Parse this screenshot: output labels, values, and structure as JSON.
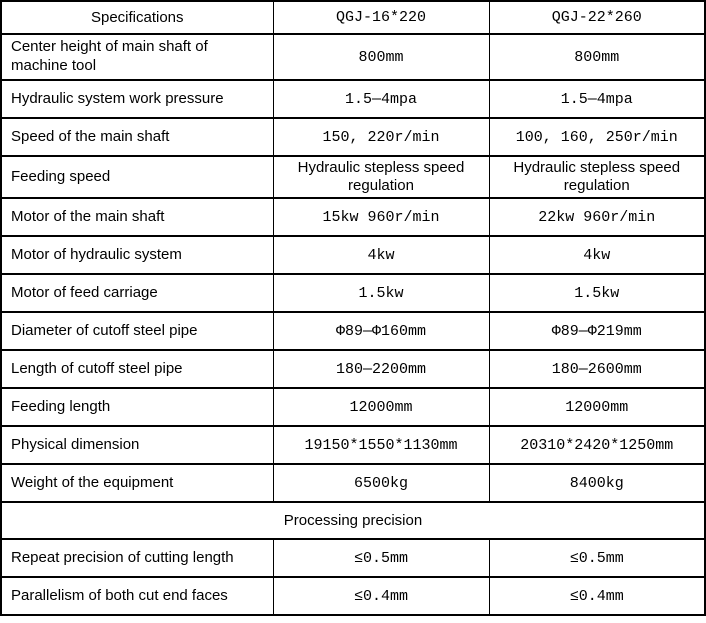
{
  "colors": {
    "background": "#ffffff",
    "border": "#000000",
    "text": "#000000"
  },
  "table": {
    "header": {
      "specifications": "Specifications",
      "model1": "QGJ-16*220",
      "model2": "QGJ-22*260"
    },
    "rows": [
      {
        "label": "Center height of main shaft of machine tool",
        "col1": "800mm",
        "col2": "800mm"
      },
      {
        "label": "Hydraulic system work pressure",
        "col1": "1.5—4mpa",
        "col2": "1.5—4mpa"
      },
      {
        "label": "Speed of the main shaft",
        "col1": "150、220r/min",
        "col2": "100、160、250r/min"
      },
      {
        "label": "Feeding speed",
        "col1": "Hydraulic stepless speed regulation",
        "col2": "Hydraulic stepless speed regulation"
      },
      {
        "label": "Motor of the main shaft",
        "col1": "15kw 960r/min",
        "col2": "22kw 960r/min"
      },
      {
        "label": "Motor of hydraulic system",
        "col1": "4kw",
        "col2": "4kw"
      },
      {
        "label": "Motor of feed carriage",
        "col1": "1.5kw",
        "col2": "1.5kw"
      },
      {
        "label": "Diameter of cutoff steel pipe",
        "col1": "Φ89—Φ160mm",
        "col2": "Φ89—Φ219mm"
      },
      {
        "label": "Length of cutoff steel pipe",
        "col1": "180—2200mm",
        "col2": "180—2600mm"
      },
      {
        "label": "Feeding length",
        "col1": "12000mm",
        "col2": "12000mm"
      },
      {
        "label": "Physical dimension",
        "col1": "19150*1550*1130mm",
        "col2": "20310*2420*1250mm"
      },
      {
        "label": "Weight of the equipment",
        "col1": "6500kg",
        "col2": "8400kg"
      }
    ],
    "section_title": "Processing precision",
    "precision_rows": [
      {
        "label": "Repeat precision of cutting length",
        "col1": "≤0.5mm",
        "col2": "≤0.5mm"
      },
      {
        "label": "Parallelism of both cut end faces",
        "col1": "≤0.4mm",
        "col2": "≤0.4mm"
      }
    ]
  }
}
